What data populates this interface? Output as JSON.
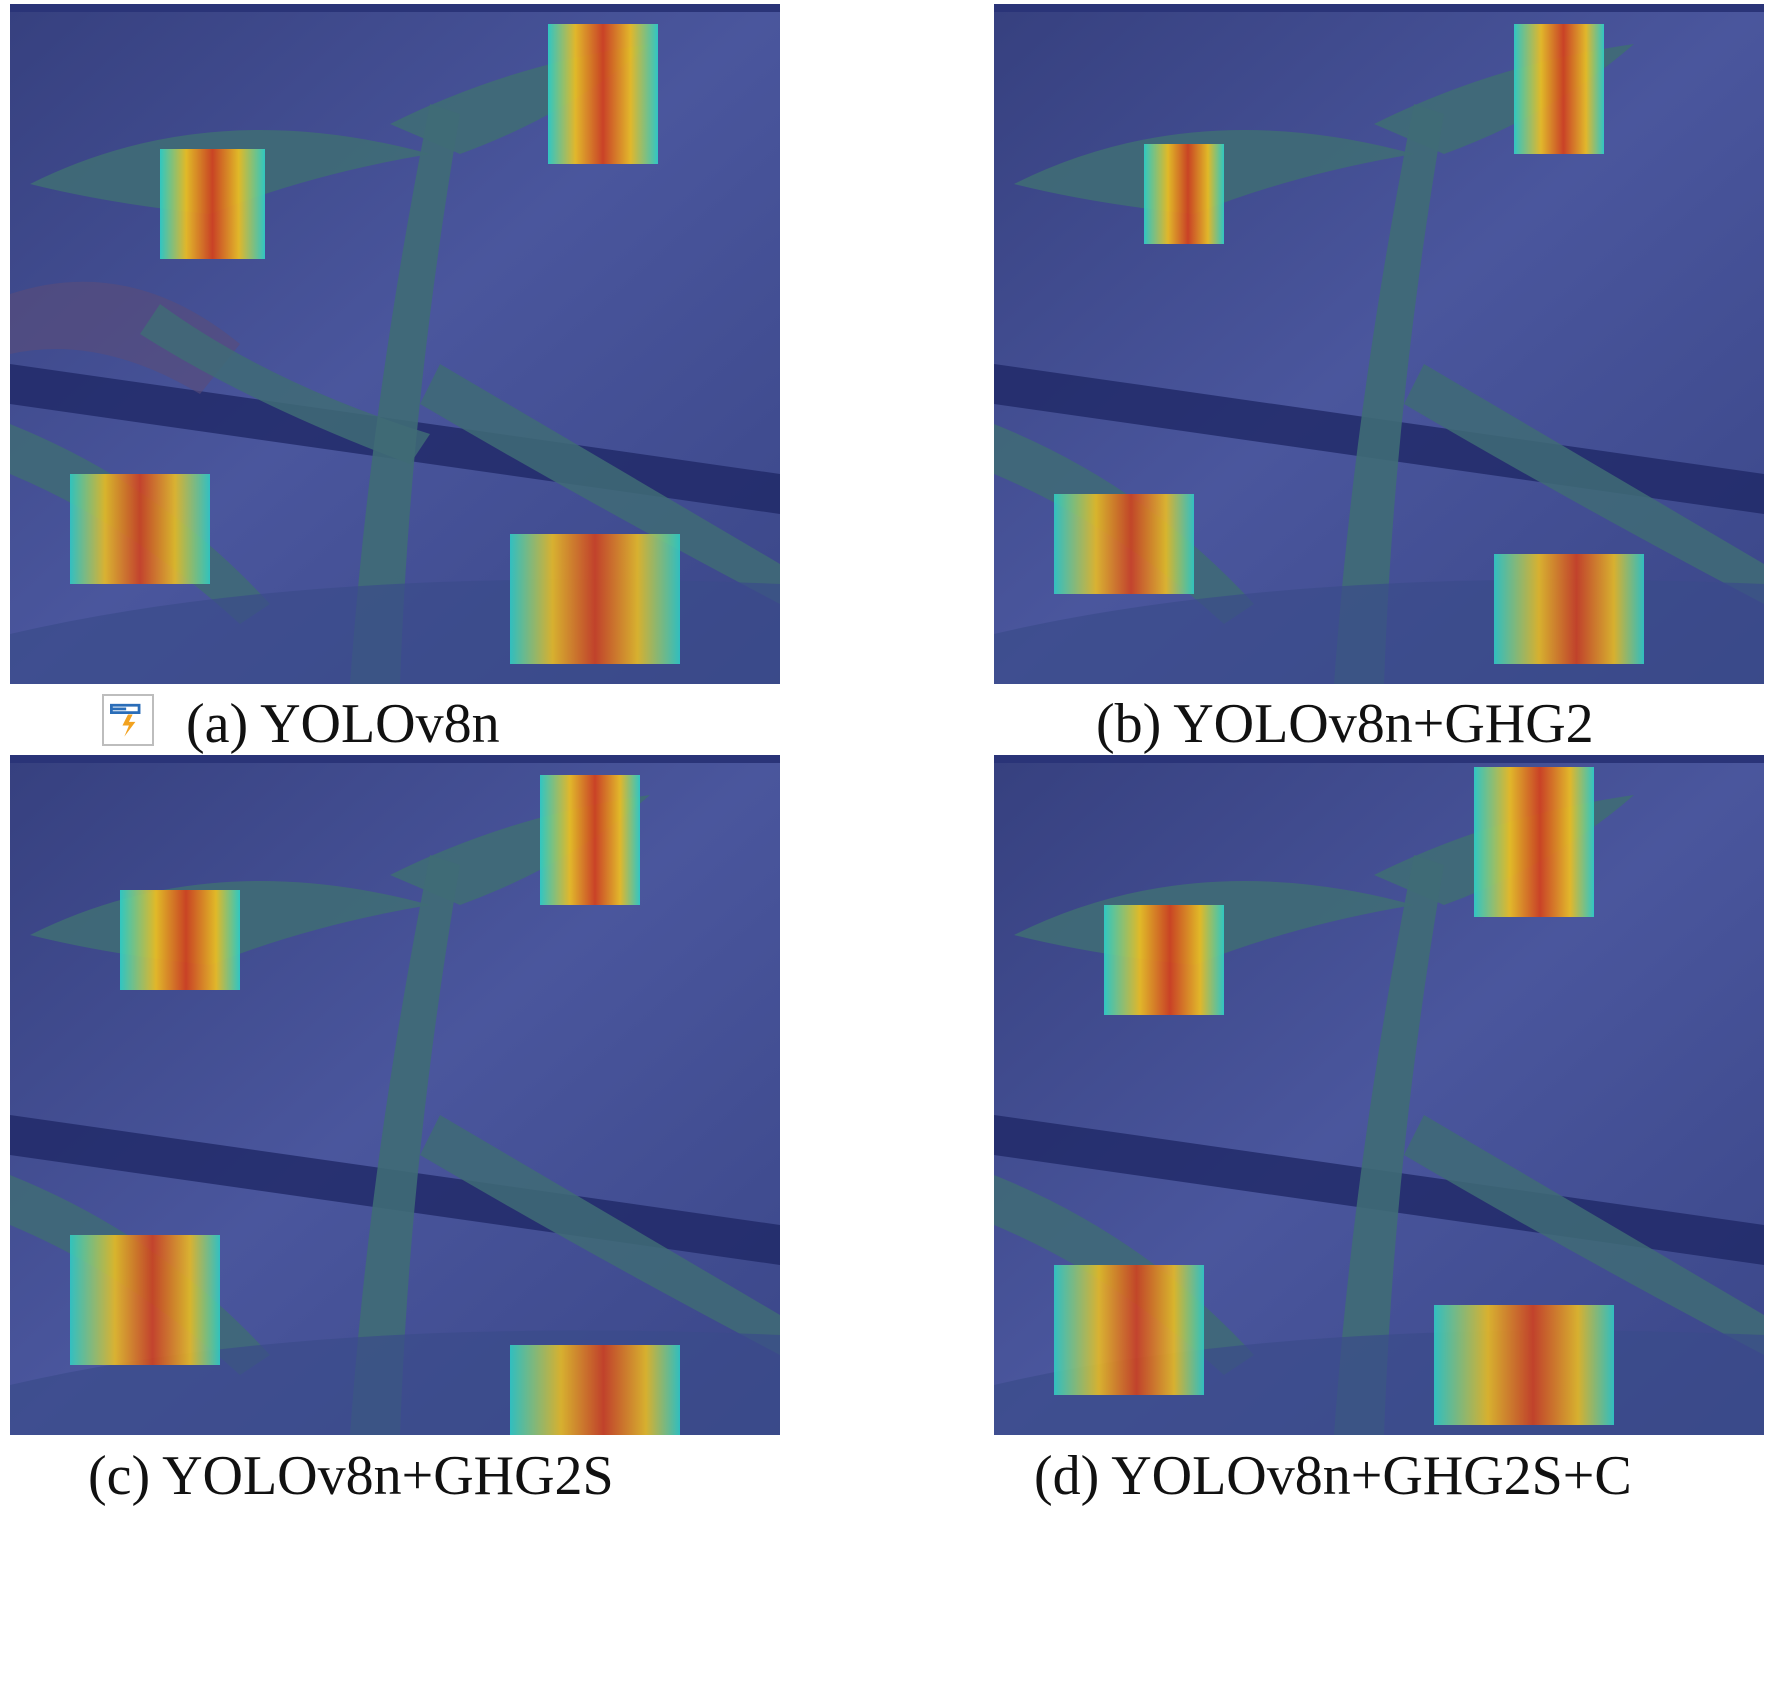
{
  "figure": {
    "panels": [
      {
        "id": "a",
        "caption": "(a) YOLOv8n"
      },
      {
        "id": "b",
        "caption": "(b) YOLOv8n+GHG2"
      },
      {
        "id": "c",
        "caption": "(c) YOLOv8n+GHG2S"
      },
      {
        "id": "d",
        "caption": "(d) YOLOv8n+GHG2S+C"
      }
    ],
    "overlay_icon": "flash-fill-icon"
  },
  "colors": {
    "background_tint": "#3e4a8f",
    "leaf": "#3f6b76",
    "heat_hot": "#d8401a",
    "heat_warm": "#f2c21f",
    "heat_cool": "#2fd2c8"
  }
}
